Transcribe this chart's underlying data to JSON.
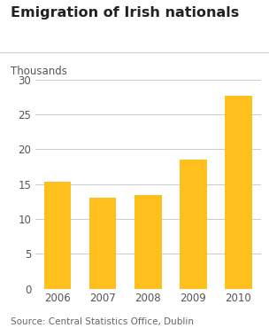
{
  "title": "Emigration of Irish nationals",
  "ylabel": "Thousands",
  "source": "Source: Central Statistics Office, Dublin",
  "categories": [
    "2006",
    "2007",
    "2008",
    "2009",
    "2010"
  ],
  "values": [
    15.3,
    13.0,
    13.4,
    18.5,
    27.7
  ],
  "bar_color": "#FFC01E",
  "ylim": [
    0,
    32
  ],
  "yticks": [
    0,
    5,
    10,
    15,
    20,
    25,
    30
  ],
  "background_color": "#ffffff",
  "title_fontsize": 11.5,
  "label_fontsize": 8.5,
  "tick_fontsize": 8.5,
  "source_fontsize": 7.5
}
